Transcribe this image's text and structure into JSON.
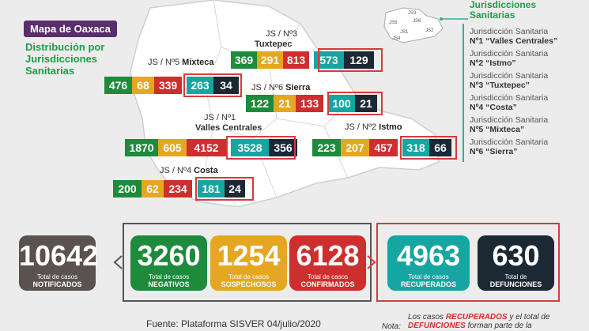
{
  "header": {
    "title": "Mapa de Oaxaca",
    "subtitle": "Distribución por Jurisdicciones Sanitarias"
  },
  "jurisdictions": [
    {
      "label": "JS / Nº3",
      "name": "Tuxtepec",
      "negativos": "369",
      "sospechosos": "291",
      "confirmados": "813",
      "recuperados": "573",
      "defunciones": "129"
    },
    {
      "label": "JS / Nº5",
      "name": "Mixteca",
      "negativos": "476",
      "sospechosos": "68",
      "confirmados": "339",
      "recuperados": "263",
      "defunciones": "34"
    },
    {
      "label": "JS / Nº6",
      "name": "Sierra",
      "negativos": "122",
      "sospechosos": "21",
      "confirmados": "133",
      "recuperados": "100",
      "defunciones": "21"
    },
    {
      "label": "JS / Nº1",
      "name": "Valles Centrales",
      "negativos": "1870",
      "sospechosos": "605",
      "confirmados": "4152",
      "recuperados": "3528",
      "defunciones": "356"
    },
    {
      "label": "JS / Nº2",
      "name": "Istmo",
      "negativos": "223",
      "sospechosos": "207",
      "confirmados": "457",
      "recuperados": "318",
      "defunciones": "66"
    },
    {
      "label": "JS / Nº4",
      "name": "Costa",
      "negativos": "200",
      "sospechosos": "62",
      "confirmados": "234",
      "recuperados": "181",
      "defunciones": "24"
    }
  ],
  "minimap": {
    "labels": [
      "JS3",
      "JS5",
      "JS6",
      "JS1",
      "JS2",
      "JS4"
    ]
  },
  "legend": {
    "title": "Jurisdicciones Sanitarias",
    "items": [
      {
        "line1": "Jurisdicción Sanitaria",
        "line2": "Nº1 “Valles Centrales”"
      },
      {
        "line1": "Jurisdicción Sanitaria",
        "line2": "Nº2 “Istmo”"
      },
      {
        "line1": "Jurisdicción Sanitaria",
        "line2": "Nº3 “Tuxtepec”"
      },
      {
        "line1": "Jurisdicción Sanitaria",
        "line2": "Nº4 “Costa”"
      },
      {
        "line1": "Jurisdicción Sanitaria",
        "line2": "Nº5 “Mixteca”"
      },
      {
        "line1": "Jurisdicción Sanitaria",
        "line2": "Nº6 “Sierra”"
      }
    ]
  },
  "totals": [
    {
      "value": "10642",
      "line1": "Total de casos",
      "line2": "NOTIFICADOS",
      "color": "#59524f"
    },
    {
      "value": "3260",
      "line1": "Total de casos",
      "line2": "NEGATIVOS",
      "color": "#1d8a3c"
    },
    {
      "value": "1254",
      "line1": "Total de casos",
      "line2": "SOSPECHOSOS",
      "color": "#e5a722"
    },
    {
      "value": "6128",
      "line1": "Total de casos",
      "line2": "CONFIRMADOS",
      "color": "#cc2f2d"
    },
    {
      "value": "4963",
      "line1": "Total de casos",
      "line2": "RECUPERADOS",
      "color": "#16a5a0"
    },
    {
      "value": "630",
      "line1": "Total de",
      "line2": "DEFUNCIONES",
      "color": "#1d2835"
    }
  ],
  "footer": {
    "source": "Fuente: Plataforma SISVER 04/julio/2020",
    "nota_label": "Nota:",
    "nota_pre": "Los casos",
    "nota_recuperados": "RECUPERADOS",
    "nota_mid": "y el total de",
    "nota_defunciones": "DEFUNCIONES",
    "nota_post": "forman parte de la"
  }
}
